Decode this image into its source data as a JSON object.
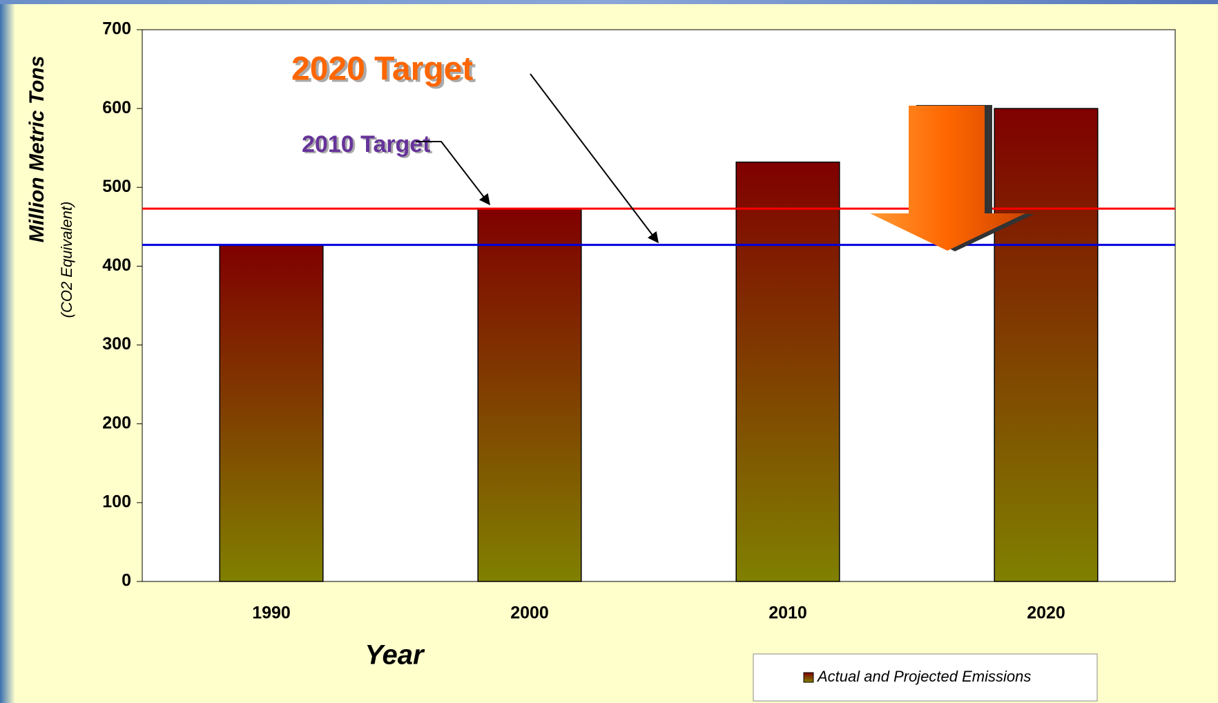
{
  "chart_data": {
    "type": "bar",
    "categories": [
      "1990",
      "2000",
      "2010",
      "2020"
    ],
    "series": [
      {
        "name": "Actual and Projected Emissions",
        "values": [
          427,
          473,
          532,
          600
        ]
      }
    ],
    "ylim": [
      0,
      700
    ],
    "yticks": [
      0,
      100,
      200,
      300,
      400,
      500,
      600,
      700
    ],
    "y_label": "Million Metric Tons",
    "y_sublabel": "(CO2 Equivalent)",
    "x_label": "Year",
    "reference_lines": [
      {
        "label": "2010 Target",
        "value": 473,
        "color": "#ff0000"
      },
      {
        "label": "2020 Target",
        "value": 427,
        "color": "#0000dd"
      }
    ]
  }
}
